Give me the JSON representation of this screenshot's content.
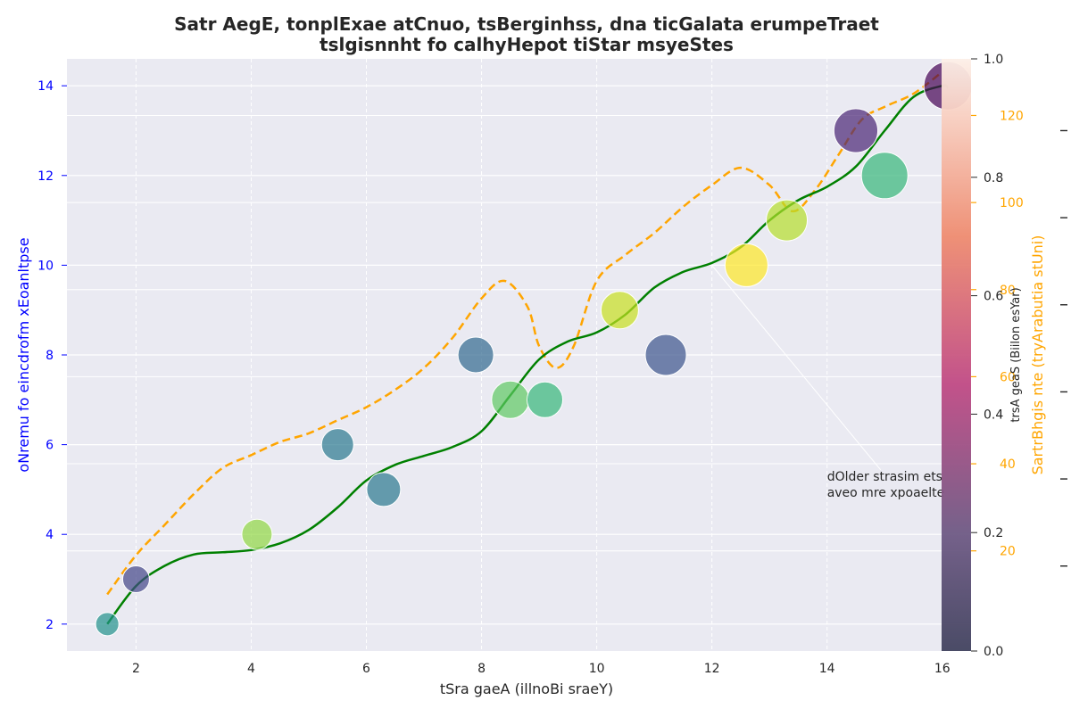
{
  "chart_data": {
    "type": "scatter",
    "title_lines": [
      "Satr AegE, tonplExae atCnuo, tsBerginhss, dna ticGalata erumpeTraet",
      "tslgisnnht fo calhyHepot tiStar msyeStes"
    ],
    "xlabel": "tSra gaeA (illnoBi sraeY)",
    "ylabel_left": "oNremu fo eincdrofm xEoanltpse",
    "ylabel_right": "SartrBhgis nte (tryArabutia stUni)",
    "colorbar_label": "trsA geaS (Biilon esYar)",
    "xlim": [
      0.8,
      16.5
    ],
    "ylim_left": [
      1.4,
      14.6
    ],
    "ylim_right": [
      -3,
      133
    ],
    "x_ticks": [
      2,
      4,
      6,
      8,
      10,
      12,
      14,
      16
    ],
    "y_ticks_left": [
      2,
      4,
      6,
      8,
      10,
      12,
      14
    ],
    "y_ticks_right": [
      20,
      40,
      60,
      80,
      100,
      120
    ],
    "colorbar_ticks": [
      "0.0",
      "0.2",
      "0.4",
      "0.6",
      "0.8",
      "1.0"
    ],
    "grid": true,
    "colors": {
      "background": "#eaeaf2",
      "left_axis": "#0000ff",
      "right_axis": "#ffa500",
      "fit_line": "#008000",
      "brightness_line": "#ffa500",
      "text": "#262626"
    },
    "points": [
      {
        "x": 1.5,
        "y": 2,
        "size": 0.3,
        "color": "#21918c"
      },
      {
        "x": 2.0,
        "y": 3,
        "size": 0.4,
        "color": "#414487"
      },
      {
        "x": 4.1,
        "y": 4,
        "size": 0.5,
        "color": "#90d743"
      },
      {
        "x": 5.5,
        "y": 6,
        "size": 0.55,
        "color": "#2a788e"
      },
      {
        "x": 6.3,
        "y": 5,
        "size": 0.6,
        "color": "#2a788e"
      },
      {
        "x": 7.9,
        "y": 8,
        "size": 0.65,
        "color": "#31688e"
      },
      {
        "x": 8.5,
        "y": 7,
        "size": 0.7,
        "color": "#5ec962"
      },
      {
        "x": 9.1,
        "y": 7,
        "size": 0.65,
        "color": "#35b779"
      },
      {
        "x": 10.4,
        "y": 9,
        "size": 0.7,
        "color": "#c8e020"
      },
      {
        "x": 11.2,
        "y": 8,
        "size": 0.8,
        "color": "#3b528b"
      },
      {
        "x": 12.6,
        "y": 10,
        "size": 0.85,
        "color": "#fde725"
      },
      {
        "x": 13.3,
        "y": 11,
        "size": 0.8,
        "color": "#b5de2b"
      },
      {
        "x": 14.5,
        "y": 13,
        "size": 0.88,
        "color": "#482475"
      },
      {
        "x": 15.0,
        "y": 12,
        "size": 0.95,
        "color": "#35b779"
      },
      {
        "x": 16.1,
        "y": 14,
        "size": 1.0,
        "color": "#440154"
      }
    ],
    "fit_curve": {
      "x": [
        1.5,
        2.0,
        2.5,
        3.0,
        3.5,
        4.0,
        4.5,
        5.0,
        5.5,
        6.0,
        6.5,
        7.0,
        7.5,
        8.0,
        8.5,
        9.0,
        9.5,
        10.0,
        10.5,
        11.0,
        11.5,
        12.0,
        12.5,
        13.0,
        13.5,
        14.0,
        14.5,
        15.0,
        15.5,
        16.0,
        16.1
      ],
      "y": [
        2.0,
        2.85,
        3.3,
        3.55,
        3.6,
        3.65,
        3.8,
        4.1,
        4.6,
        5.2,
        5.55,
        5.75,
        5.95,
        6.3,
        7.1,
        7.9,
        8.3,
        8.5,
        8.9,
        9.5,
        9.85,
        10.05,
        10.4,
        11.0,
        11.45,
        11.75,
        12.2,
        13.0,
        13.75,
        14.0,
        13.95
      ]
    },
    "brightness_curve": {
      "x": [
        1.5,
        2.0,
        2.5,
        3.0,
        3.5,
        4.0,
        4.5,
        5.0,
        5.5,
        6.0,
        6.5,
        7.0,
        7.5,
        8.0,
        8.4,
        8.8,
        9.0,
        9.3,
        9.6,
        10.0,
        10.5,
        11.0,
        11.5,
        12.0,
        12.5,
        13.0,
        13.4,
        13.8,
        14.2,
        14.6,
        15.0,
        15.5,
        16.0
      ],
      "y": [
        10,
        19,
        26,
        33,
        39,
        42,
        45,
        47,
        50,
        53,
        57,
        62,
        69,
        78,
        82,
        76,
        67,
        62,
        67,
        82,
        88,
        93,
        99,
        104,
        108,
        104,
        98,
        103,
        111,
        119,
        122,
        125,
        130
      ]
    },
    "annotation": {
      "lines": [
        "dOlder strasim ets",
        "aveo mre xpoaelte"
      ],
      "text_x": 14.0,
      "text_y": 5.2,
      "arrow_x": 12.0,
      "arrow_y": 10.0
    }
  }
}
